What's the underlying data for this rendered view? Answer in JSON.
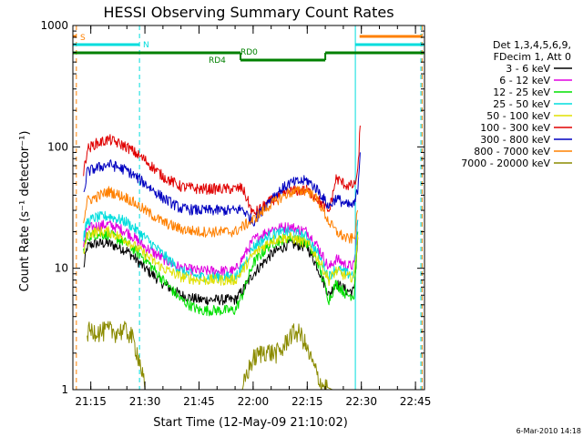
{
  "chart_data": {
    "type": "line",
    "title": "HESSI Observing Summary Count Rates",
    "xlabel": "Start Time (12-May-09 21:10:02)",
    "ylabel": "Count Rate (s⁻¹ detector⁻¹)",
    "x_scale": "time",
    "y_scale": "log",
    "xlim": [
      "21:10:02",
      "22:47:30"
    ],
    "ylim": [
      1,
      1000
    ],
    "x_ticks": [
      "21:15",
      "21:30",
      "21:45",
      "22:00",
      "22:15",
      "22:30",
      "22:45"
    ],
    "y_ticks": [
      "1",
      "10",
      "100",
      "1000"
    ],
    "grid": false,
    "legend_position": "right",
    "legend_header": [
      "Det 1,3,4,5,6,9,",
      "FDecim 1, Att 0"
    ],
    "series": [
      {
        "name": "3 - 6 keV",
        "color": "#000000",
        "x": [
          "21:13",
          "21:14",
          "21:16",
          "21:20",
          "21:25",
          "21:30",
          "21:35",
          "21:40",
          "21:45",
          "21:50",
          "21:55",
          "21:57",
          "22:00",
          "22:05",
          "22:10",
          "22:15",
          "22:18",
          "22:21",
          "22:23",
          "22:26",
          "22:28",
          "22:29"
        ],
        "y": [
          10,
          15,
          16,
          16,
          14,
          10,
          7.5,
          6,
          5.5,
          5.5,
          5.5,
          6.5,
          9,
          13,
          16,
          15,
          10,
          6,
          7.5,
          6.5,
          6.5,
          18
        ]
      },
      {
        "name": "6 - 12 keV",
        "color": "#e000e0",
        "x": [
          "21:13",
          "21:14",
          "21:16",
          "21:20",
          "21:25",
          "21:30",
          "21:35",
          "21:40",
          "21:45",
          "21:50",
          "21:55",
          "21:57",
          "22:00",
          "22:05",
          "22:10",
          "22:15",
          "22:18",
          "22:21",
          "22:23",
          "22:26",
          "22:28",
          "22:29"
        ],
        "y": [
          15,
          21,
          22,
          23,
          20,
          15,
          12,
          10,
          9.5,
          9.5,
          9.5,
          12,
          17,
          21,
          22,
          20,
          15,
          10,
          12,
          10.5,
          10.5,
          25
        ]
      },
      {
        "name": "12 - 25 keV",
        "color": "#00e000",
        "x": [
          "21:13",
          "21:14",
          "21:16",
          "21:20",
          "21:25",
          "21:30",
          "21:35",
          "21:40",
          "21:45",
          "21:50",
          "21:55",
          "21:57",
          "22:00",
          "22:05",
          "22:10",
          "22:15",
          "22:18",
          "22:21",
          "22:23",
          "22:26",
          "22:28",
          "22:29"
        ],
        "y": [
          14,
          18,
          19,
          19,
          16,
          12,
          8,
          5.5,
          4.5,
          4.5,
          4.5,
          6,
          11,
          16,
          18,
          16,
          11,
          5.5,
          7.5,
          6,
          6,
          20
        ]
      },
      {
        "name": "25 - 50 keV",
        "color": "#00dddd",
        "x": [
          "21:13",
          "21:14",
          "21:16",
          "21:20",
          "21:25",
          "21:30",
          "21:35",
          "21:40",
          "21:45",
          "21:50",
          "21:55",
          "21:57",
          "22:00",
          "22:05",
          "22:10",
          "22:15",
          "22:18",
          "22:21",
          "22:23",
          "22:26",
          "22:28",
          "22:29"
        ],
        "y": [
          18,
          24,
          26,
          27,
          24,
          18,
          13,
          9.5,
          8.5,
          8.5,
          8.5,
          10,
          15,
          19,
          20,
          18,
          13,
          8.5,
          10,
          9,
          9,
          25
        ]
      },
      {
        "name": "50 - 100 keV",
        "color": "#e0e000",
        "x": [
          "21:13",
          "21:14",
          "21:16",
          "21:20",
          "21:25",
          "21:30",
          "21:35",
          "21:40",
          "21:45",
          "21:50",
          "21:55",
          "21:57",
          "22:00",
          "22:05",
          "22:10",
          "22:15",
          "22:18",
          "22:21",
          "22:23",
          "22:26",
          "22:28",
          "22:29"
        ],
        "y": [
          13,
          19,
          20,
          20,
          17,
          13,
          10,
          8.5,
          8,
          8,
          8,
          9.5,
          13,
          17,
          18,
          16,
          12,
          8,
          9.5,
          8.5,
          8.5,
          19
        ]
      },
      {
        "name": "100 - 300 keV",
        "color": "#e00000",
        "x": [
          "21:13",
          "21:14",
          "21:16",
          "21:20",
          "21:25",
          "21:30",
          "21:35",
          "21:40",
          "21:45",
          "21:50",
          "21:55",
          "21:57",
          "22:00",
          "22:05",
          "22:10",
          "22:15",
          "22:18",
          "22:21",
          "22:23",
          "22:26",
          "22:28",
          "22:29",
          "22:29:40"
        ],
        "y": [
          60,
          95,
          105,
          115,
          100,
          78,
          57,
          47,
          45,
          45,
          45,
          46,
          28,
          36,
          43,
          44,
          37,
          29,
          55,
          48,
          48,
          60,
          150
        ]
      },
      {
        "name": "300 - 800 keV",
        "color": "#0000c0",
        "x": [
          "21:13",
          "21:14",
          "21:16",
          "21:20",
          "21:25",
          "21:30",
          "21:35",
          "21:40",
          "21:45",
          "21:50",
          "21:55",
          "21:57",
          "22:00",
          "22:05",
          "22:10",
          "22:15",
          "22:18",
          "22:21",
          "22:23",
          "22:26",
          "22:28",
          "22:29",
          "22:29:40"
        ],
        "y": [
          40,
          62,
          66,
          72,
          64,
          50,
          38,
          31,
          30,
          30,
          30,
          31,
          24,
          38,
          50,
          53,
          44,
          32,
          38,
          33,
          33,
          45,
          90
        ]
      },
      {
        "name": "800 - 7000 keV",
        "color": "#ff8000",
        "x": [
          "21:13",
          "21:14",
          "21:16",
          "21:20",
          "21:25",
          "21:30",
          "21:35",
          "21:40",
          "21:45",
          "21:50",
          "21:55",
          "21:57",
          "22:00",
          "22:05",
          "22:10",
          "22:15",
          "22:18",
          "22:21",
          "22:23",
          "22:26",
          "22:28",
          "22:29"
        ],
        "y": [
          25,
          36,
          38,
          43,
          38,
          30,
          24,
          21,
          20,
          20,
          20,
          22,
          25,
          34,
          42,
          44,
          36,
          24,
          20,
          17.5,
          17.5,
          30
        ]
      },
      {
        "name": "7000 - 20000 keV",
        "color": "#8b8b00",
        "x": [
          "21:14",
          "21:16",
          "21:18",
          "21:20",
          "21:22",
          "21:24",
          "21:26",
          "21:27",
          "21:28",
          "21:29",
          "21:30",
          "21:34",
          "21:40",
          "21:50",
          "21:57",
          "21:58",
          "22:00",
          "22:03",
          "22:06",
          "22:08",
          "22:10",
          "22:12",
          "22:13",
          "22:14",
          "22:15",
          "22:16",
          "22:17",
          "22:19",
          "22:22",
          "22:29"
        ],
        "y": [
          3,
          3.1,
          3,
          3.1,
          3,
          3.1,
          2.9,
          2.4,
          2,
          1.5,
          1,
          1,
          1,
          1,
          1,
          1.3,
          1.8,
          2.1,
          2,
          2.1,
          2.8,
          3,
          2.9,
          2.6,
          2.1,
          1.8,
          1.5,
          1.1,
          1,
          1
        ]
      }
    ],
    "annotations": {
      "attenuator_flag": {
        "label": "S",
        "color": "#ff8000"
      },
      "mode_flag": {
        "label": "N",
        "color": "#00dddd"
      },
      "rate_labels": [
        {
          "label": "RD0",
          "color": "#008000"
        },
        {
          "label": "RD4",
          "color": "#008000"
        }
      ]
    },
    "footer": "6-Mar-2010 14:18"
  }
}
